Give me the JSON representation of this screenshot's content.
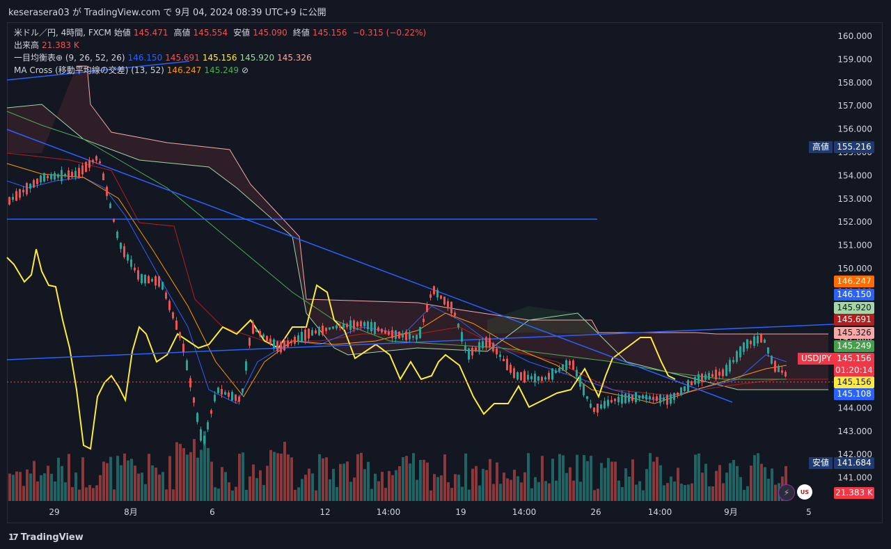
{
  "header": {
    "publish_line": "keserasera03 が TradingView.com で 9月 04, 2024 08:39 UTC+9 に公開"
  },
  "legend": {
    "symbol_line": {
      "symbol": "米ドル／円, 4時間, FXCM",
      "open_label": "始値",
      "open": "145.471",
      "high_label": "高値",
      "high": "145.554",
      "low_label": "安値",
      "low": "145.090",
      "close_label": "終値",
      "close": "145.156",
      "change": "−0.315 (−0.22%)"
    },
    "volume_line": {
      "label": "出来高",
      "value": "21.383 K"
    },
    "ichimoku_line": {
      "label": "一目均衡表⊕ (9, 26, 52, 26)",
      "v1": "146.150",
      "v2": "145.691",
      "v3": "145.156",
      "v4": "145.920",
      "v5": "145.326"
    },
    "macross_line": {
      "label": "MA Cross (移動平均線の交差) (13, 52)",
      "v1": "146.247",
      "v2": "145.249",
      "hidden_icon": "⊘"
    }
  },
  "price_axis": {
    "ticks": [
      "160.000",
      "159.000",
      "158.000",
      "157.000",
      "156.000",
      "155.000",
      "154.000",
      "153.000",
      "152.000",
      "151.000",
      "150.000",
      "149.000",
      "148.000",
      "147.000",
      "146.000",
      "145.000",
      "144.000",
      "143.000",
      "142.000",
      "141.000"
    ]
  },
  "price_labels": {
    "high_name": "高値",
    "high_value": "155.216",
    "low_name": "安値",
    "low_value": "141.684",
    "ma_fast": "146.247",
    "tenkan": "146.150",
    "kijun_green": "145.920",
    "senkou_a": "145.691",
    "senkou_b": "145.326",
    "ma_slow": "145.249",
    "symbol_tag": "USDJPY",
    "last_price": "145.156",
    "countdown": "01:20:14",
    "chikou": "145.156",
    "other": "145.108",
    "volume_value": "21.383 K"
  },
  "time_axis": {
    "ticks": [
      "29",
      "8月",
      "6",
      "12",
      "14:00",
      "19",
      "14:00",
      "26",
      "14:00",
      "9月",
      "5"
    ]
  },
  "colors": {
    "bg": "#131722",
    "up": "#26a69a",
    "down": "#ef5350",
    "trend": "#2962ff",
    "chikou": "#ffeb3b",
    "ma_fast": "#ff9800",
    "ma_slow": "#4caf50"
  },
  "footer": {
    "brand": "TradingView",
    "brand_mark": "17"
  },
  "buttons": {
    "bolt_icon": "⚡",
    "flag_icon": "US"
  }
}
